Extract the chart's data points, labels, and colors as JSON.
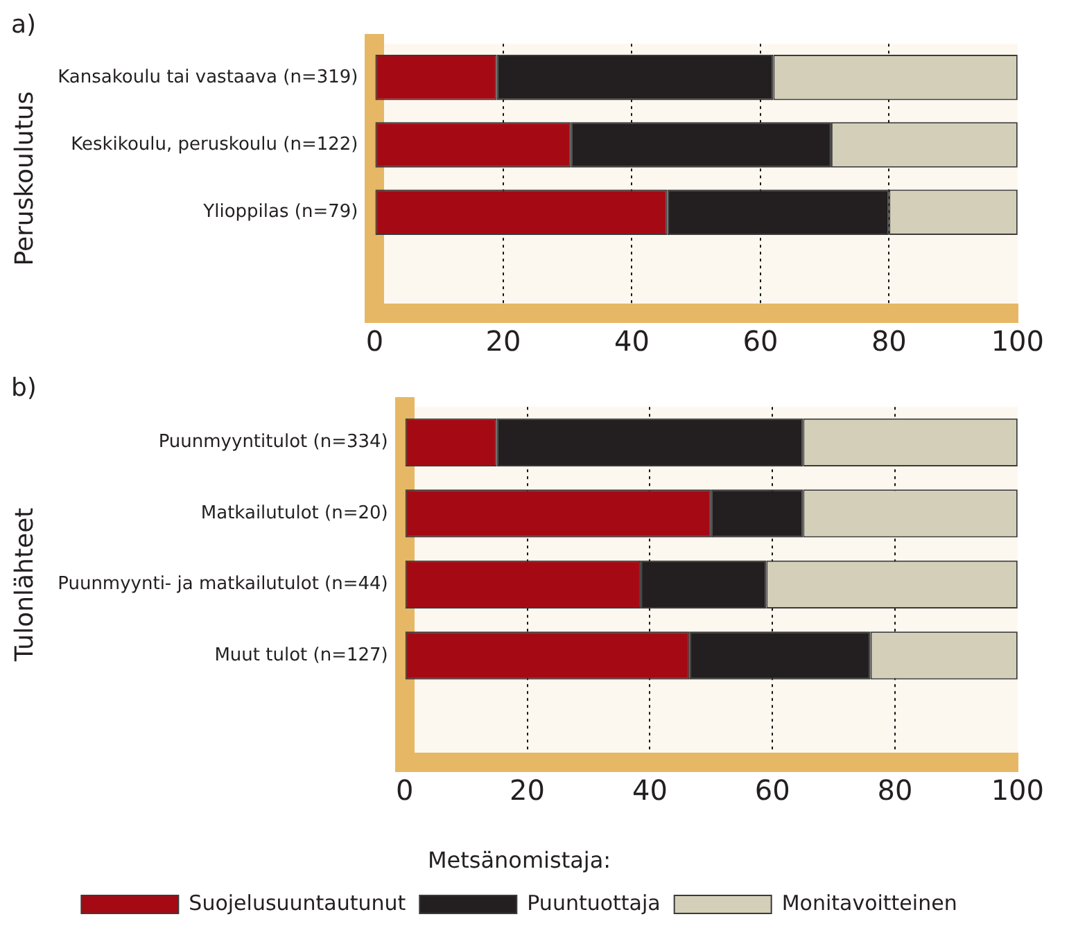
{
  "chart_data": [
    {
      "type": "bar",
      "title": "a)",
      "ylabel": "Peruskoulutus",
      "orientation": "horizontal",
      "stacked": true,
      "categories": [
        "Kansakoulu tai vastaava (n=319)",
        "Keskikoulu, peruskoulu (n=122)",
        "Ylioppilas (n=79)",
        null
      ],
      "series": [
        {
          "color": "#a50a14",
          "values": [
            19,
            30.5,
            45.5,
            null
          ]
        },
        {
          "color": "#231f20",
          "values": [
            43,
            40.5,
            34.5,
            null
          ]
        },
        {
          "color": "#d3cfb9",
          "values": [
            38,
            29,
            20,
            null
          ]
        }
      ],
      "xlim": [
        0,
        100
      ],
      "xticks": [
        0,
        20,
        40,
        60,
        80,
        100
      ],
      "grid": "x",
      "legend": false
    },
    {
      "type": "bar",
      "title": "b)",
      "ylabel": "Tulonlähteet",
      "orientation": "horizontal",
      "stacked": true,
      "categories": [
        "Puunmyyntitulot (n=334)",
        "Matkailutulot (n=20)",
        "Puunmyynti- ja matkailutulot (n=44)",
        "Muut tulot (n=127)",
        null
      ],
      "series": [
        {
          "name": "Suojelusuuntautunut",
          "color": "#a50a14",
          "values": [
            15,
            50,
            38.5,
            46.5,
            null
          ]
        },
        {
          "name": "Puuntuottaja",
          "color": "#231f20",
          "values": [
            50,
            15,
            20.5,
            29.5,
            null
          ]
        },
        {
          "name": "Monitavoitteinen",
          "color": "#d3cfb9",
          "values": [
            35,
            35,
            41,
            24,
            null
          ]
        }
      ],
      "xlim": [
        0,
        100
      ],
      "xticks": [
        0,
        20,
        40,
        60,
        80,
        100
      ],
      "grid": "x",
      "legend": "bottom",
      "legend_title": "Metsänomistaja:"
    }
  ]
}
